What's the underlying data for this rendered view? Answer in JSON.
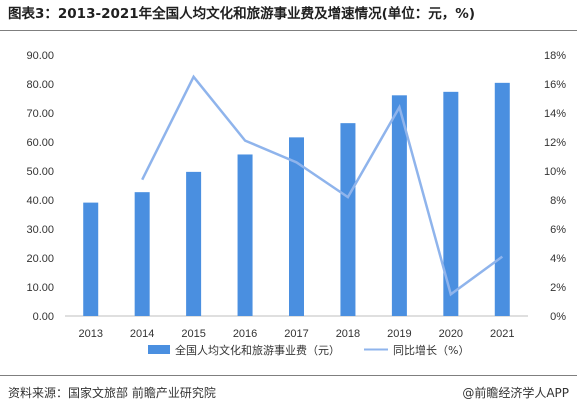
{
  "header": {
    "title": "图表3：2013-2021年全国人均文化和旅游事业费及增速情况(单位：元，%)"
  },
  "footer": {
    "source": "资料来源：国家文旅部 前瞻产业研究院",
    "brand": "@前瞻经济学人APP"
  },
  "chart_data": {
    "type": "bar",
    "title": "图表3：2013-2021年全国人均文化和旅游事业费及增速情况(单位：元，%)",
    "categories": [
      "2013",
      "2014",
      "2015",
      "2016",
      "2017",
      "2018",
      "2019",
      "2020",
      "2021"
    ],
    "series": [
      {
        "name": "全国人均文化和旅游事业费（元）",
        "type": "bar",
        "axis": "left",
        "color": "#4a8fe0",
        "values": [
          39.1,
          42.7,
          49.7,
          55.7,
          61.6,
          66.5,
          76.1,
          77.3,
          80.4
        ]
      },
      {
        "name": "同比增长（%）",
        "type": "line",
        "axis": "right",
        "color": "#8fb4ec",
        "values": [
          null,
          9.4,
          16.5,
          12.1,
          10.6,
          8.2,
          14.4,
          1.5,
          4.1
        ]
      }
    ],
    "y_left": {
      "range": [
        0,
        90
      ],
      "ticks": [
        "0.00",
        "10.00",
        "20.00",
        "30.00",
        "40.00",
        "50.00",
        "60.00",
        "70.00",
        "80.00",
        "90.00"
      ]
    },
    "y_right": {
      "range": [
        0,
        18
      ],
      "ticks": [
        "0%",
        "2%",
        "4%",
        "6%",
        "8%",
        "10%",
        "12%",
        "14%",
        "16%",
        "18%"
      ]
    },
    "grid": false,
    "legend": "bottom-center"
  }
}
